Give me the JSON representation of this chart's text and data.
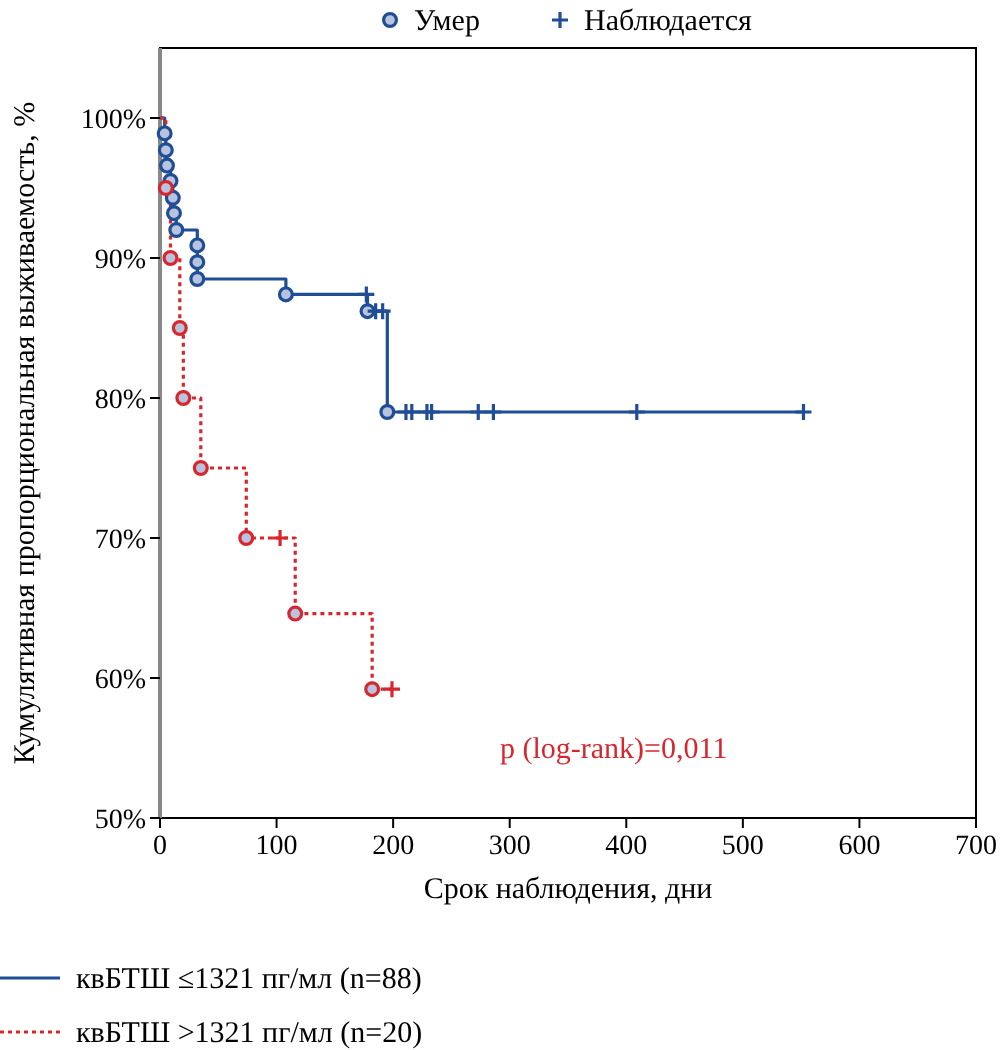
{
  "chart_data": {
    "type": "step",
    "xlabel": "Срок наблюдения, дни",
    "ylabel": "Кумулятивная пропорциональная выживаемость, %",
    "xlim": [
      0,
      700
    ],
    "xticks": [
      0,
      100,
      200,
      300,
      400,
      500,
      600,
      700
    ],
    "ylim": [
      50,
      105
    ],
    "yticks": [
      {
        "value": 50,
        "label": "50%"
      },
      {
        "value": 60,
        "label": "60%"
      },
      {
        "value": 70,
        "label": "70%"
      },
      {
        "value": 80,
        "label": "80%"
      },
      {
        "value": 90,
        "label": "90%"
      },
      {
        "value": 100,
        "label": "100%"
      }
    ],
    "grid": false,
    "legend": "bottom",
    "annotations": [
      "p (log-rank)=0,011"
    ],
    "series": [
      {
        "name": "квБТШ ≤1321 пг/мл (n=88)",
        "color": "#1f4e96",
        "line_style": "solid",
        "x": [
          0,
          4,
          5,
          6,
          9,
          11,
          12,
          14,
          32,
          108,
          178,
          195,
          552
        ],
        "values": [
          100,
          98.9,
          97.7,
          96.6,
          95.5,
          94.3,
          93.2,
          92.0,
          88.5,
          87.4,
          86.2,
          79.0,
          79.0
        ]
      },
      {
        "name": "квБТШ >1321 пг/мл (n=20)",
        "color": "#d7262e",
        "line_style": "dotted",
        "x": [
          0,
          5,
          9,
          17,
          20,
          35,
          74,
          116,
          182,
          199
        ],
        "values": [
          100,
          95,
          90,
          85,
          80,
          75,
          70,
          64.6,
          59.2,
          59.2
        ]
      },
      {
        "name": "Умер",
        "type": "scatter",
        "color": "#1f4e96",
        "marker": "circle",
        "x": [
          4,
          5,
          6,
          9,
          11,
          12,
          14,
          32,
          32,
          32,
          108,
          178,
          195
        ],
        "values": [
          98.9,
          97.7,
          96.6,
          95.5,
          94.3,
          93.2,
          92.0,
          90.9,
          89.7,
          88.5,
          87.4,
          86.2,
          79.0
        ]
      },
      {
        "type": "scatter",
        "color": "#d7262e",
        "marker": "circle",
        "x": [
          5,
          9,
          17,
          20,
          35,
          74,
          116,
          182
        ],
        "values": [
          95,
          90,
          85,
          80,
          75,
          70,
          64.6,
          59.2
        ]
      },
      {
        "name": "Наблюдается",
        "type": "scatter",
        "color": "#1f4e96",
        "marker": "cross",
        "x": [
          177,
          185,
          191,
          211,
          216,
          229,
          233,
          273,
          286,
          409,
          552
        ],
        "values": [
          87.4,
          86.2,
          86.2,
          79,
          79,
          79,
          79,
          79,
          79,
          79,
          79
        ]
      },
      {
        "type": "scatter",
        "color": "#d7262e",
        "marker": "cross",
        "x": [
          103,
          199
        ],
        "values": [
          70,
          59.2
        ]
      }
    ]
  }
}
